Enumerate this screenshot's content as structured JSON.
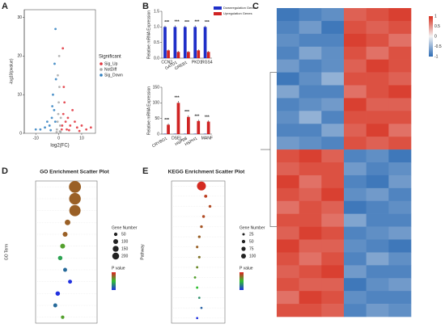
{
  "chart_data": [
    {
      "type": "scatter",
      "label": "A",
      "x_label": "log2(FC)",
      "y_label": "-log10(pvalue)",
      "xlim": [
        -15,
        16
      ],
      "xticks": [
        -10,
        0,
        10
      ],
      "ylim": [
        0,
        32
      ],
      "yticks": [
        0,
        10,
        20,
        30
      ],
      "legend_title": "Significant",
      "series": [
        {
          "name": "Sig_Up",
          "color": "#e0303a",
          "x": [
            1.5,
            2,
            2.5,
            3,
            4,
            5,
            6,
            7,
            8,
            10,
            12,
            14,
            2.2,
            3.5,
            1.8,
            4.5,
            9,
            1.3
          ],
          "y": [
            2,
            5,
            8,
            3,
            4,
            2,
            6,
            3,
            1.5,
            2,
            1,
            1.5,
            12,
            1,
            22,
            0.8,
            0.6,
            1
          ]
        },
        {
          "name": "NotDiff",
          "color": "#a8a8a8",
          "x": [
            -0.8,
            -0.5,
            -0.2,
            0,
            0.3,
            0.6,
            0.9,
            -0.4,
            0.2,
            0.5,
            -0.9,
            0.8
          ],
          "y": [
            1,
            3,
            5,
            8,
            12,
            2,
            4,
            15,
            20,
            0.5,
            0.3,
            0.4
          ]
        },
        {
          "name": "Sig_Down",
          "color": "#2f7fc0",
          "x": [
            -1.5,
            -2,
            -2.5,
            -3,
            -4,
            -5,
            -6,
            -8,
            -10,
            -1.2,
            -1.8,
            -2.8,
            -3.5,
            -1.4
          ],
          "y": [
            3,
            6,
            10,
            4,
            2,
            3,
            1.5,
            1,
            1,
            14,
            18,
            7,
            0.8,
            27
          ]
        }
      ]
    },
    {
      "type": "bar",
      "label": "B",
      "y_label": "Relative mRNA Expression",
      "categories": [
        "CCN2",
        "GATD1",
        "GREB1",
        "PKD1",
        "RGS4"
      ],
      "ylim": [
        0,
        1.5
      ],
      "yticks": [
        {
          "value": 0,
          "label": "0.0"
        },
        {
          "value": 0.5,
          "label": "0.5"
        },
        {
          "value": 1,
          "label": "1.0"
        },
        {
          "value": 1.5,
          "label": "1.5"
        }
      ],
      "annotations": [
        "***",
        "***",
        "***",
        "***",
        "***"
      ],
      "series": [
        {
          "name": "Downregulation Genes",
          "color": "#1f2fc8",
          "values": [
            1,
            1,
            1,
            1,
            1
          ],
          "errors": [
            0.04,
            0.05,
            0.04,
            0.05,
            0.04
          ]
        },
        {
          "name": "Upregulation Genes",
          "color": "#d02424",
          "values": [
            0.25,
            0.2,
            0.2,
            0.25,
            0.2
          ],
          "errors": [
            0.03,
            0.03,
            0.03,
            0.03,
            0.03
          ]
        }
      ]
    },
    {
      "type": "bar",
      "y_label": "Relative mRNA Expression",
      "categories": [
        "CRYBG1",
        "DSEL",
        "HSPB8",
        "HSPH1",
        "MANF"
      ],
      "ylim": [
        0,
        150
      ],
      "yticks": [
        0,
        50,
        100,
        150
      ],
      "annotations": [
        "***",
        "***",
        "***",
        "***",
        "***"
      ],
      "series": [
        {
          "name": "Downregulation Genes",
          "color": "#1f2fc8",
          "values": [
            1,
            1,
            1,
            1,
            1
          ],
          "errors": [
            0.5,
            0.5,
            0.5,
            0.5,
            0.5
          ]
        },
        {
          "name": "Upregulation Genes",
          "color": "#d02424",
          "values": [
            30,
            100,
            55,
            42,
            40
          ],
          "errors": [
            4,
            6,
            5,
            4,
            4
          ]
        }
      ]
    },
    {
      "type": "heatmap",
      "label": "C",
      "ticks": [
        1,
        0.5,
        0,
        -0.5,
        -1
      ],
      "lim": [
        -1.2,
        1.2
      ],
      "values": [
        [
          -1.1,
          -1.0,
          -0.9,
          0.9,
          1.0,
          1.1
        ],
        [
          -1.0,
          -0.8,
          -1.1,
          1.0,
          0.9,
          1.0
        ],
        [
          -0.9,
          -1.0,
          -1.0,
          1.1,
          1.0,
          0.8
        ],
        [
          -1.0,
          -0.7,
          -0.9,
          1.0,
          0.8,
          1.0
        ],
        [
          -0.8,
          -1.0,
          -0.9,
          0.9,
          1.1,
          1.0
        ],
        [
          -1.1,
          -0.9,
          -0.6,
          1.0,
          1.0,
          0.9
        ],
        [
          -0.7,
          -1.0,
          -1.0,
          0.8,
          1.0,
          1.1
        ],
        [
          -1.0,
          -0.9,
          -0.8,
          1.1,
          0.9,
          0.9
        ],
        [
          -0.9,
          -0.6,
          -1.0,
          1.0,
          1.0,
          1.0
        ],
        [
          -1.0,
          -1.0,
          -0.7,
          0.9,
          1.1,
          0.8
        ],
        [
          -0.8,
          -0.9,
          -1.0,
          1.0,
          0.9,
          1.0
        ],
        [
          1.0,
          1.1,
          0.9,
          -1.0,
          -0.9,
          -1.1
        ],
        [
          0.9,
          1.0,
          1.0,
          -0.8,
          -1.0,
          -0.9
        ],
        [
          1.1,
          0.8,
          1.0,
          -1.0,
          -1.1,
          -0.8
        ],
        [
          1.0,
          0.9,
          1.1,
          -0.9,
          -0.8,
          -1.0
        ],
        [
          0.8,
          1.0,
          0.9,
          -1.1,
          -1.0,
          -0.9
        ],
        [
          1.0,
          1.0,
          0.8,
          -0.7,
          -1.0,
          -1.0
        ],
        [
          0.9,
          1.1,
          1.0,
          -1.0,
          -0.9,
          -0.8
        ],
        [
          1.1,
          0.9,
          0.9,
          -0.9,
          -1.0,
          -1.1
        ],
        [
          1.0,
          0.8,
          1.0,
          -1.0,
          -0.7,
          -0.9
        ],
        [
          0.9,
          1.0,
          1.1,
          -0.8,
          -1.0,
          -1.0
        ],
        [
          1.0,
          0.9,
          0.9,
          -1.1,
          -0.9,
          -0.8
        ],
        [
          0.8,
          1.1,
          1.0,
          -0.9,
          -1.0,
          -1.0
        ],
        [
          1.0,
          1.0,
          0.9,
          -1.0,
          -0.8,
          -0.9
        ]
      ]
    },
    {
      "type": "dotplot",
      "label": "D",
      "title": "GO Enrichment Scatter Plot",
      "y_label": "GO Term",
      "categories": [
        null,
        null,
        null,
        null,
        null,
        null,
        null,
        null,
        null,
        null,
        null,
        null
      ],
      "xlim": [
        0,
        0.25
      ],
      "x": [
        0.16,
        0.16,
        0.16,
        0.13,
        0.12,
        0.11,
        0.1,
        0.12,
        0.14,
        0.09,
        0.08,
        0.11
      ],
      "sizes": [
        180,
        170,
        160,
        40,
        30,
        30,
        25,
        20,
        20,
        25,
        20,
        15
      ],
      "pvalues": [
        1e-05,
        1e-05,
        1e-05,
        1e-05,
        1e-05,
        2e-05,
        3e-05,
        4e-05,
        5e-05,
        5e-05,
        4e-05,
        2e-05
      ],
      "plim": [
        0,
        5e-05
      ],
      "size_title": "Gene Number",
      "size_legend": [
        50,
        100,
        150,
        200
      ],
      "color_title": "P value"
    },
    {
      "type": "dotplot",
      "label": "E",
      "title": "KEGG Enrichment Scatter Plot",
      "y_label": "Pathway",
      "categories": [
        null,
        null,
        null,
        null,
        null,
        null,
        null,
        null,
        null,
        null,
        null,
        null,
        null,
        null
      ],
      "xlim": [
        0,
        0.25
      ],
      "x": [
        0.14,
        0.16,
        0.18,
        0.15,
        0.14,
        0.13,
        0.12,
        0.13,
        0.12,
        0.11,
        0.12,
        0.13,
        0.14,
        0.12
      ],
      "sizes": [
        100,
        12,
        10,
        10,
        9,
        9,
        8,
        8,
        7,
        7,
        7,
        6,
        6,
        6
      ],
      "pvalues": [
        0.001,
        0.003,
        0.004,
        0.004,
        0.005,
        0.006,
        0.006,
        0.008,
        0.01,
        0.012,
        0.015,
        0.02,
        0.025,
        0.03
      ],
      "plim": [
        0,
        0.03
      ],
      "size_title": "Gene Number",
      "size_legend": [
        25,
        50,
        75,
        100
      ],
      "color_title": "P value"
    }
  ]
}
